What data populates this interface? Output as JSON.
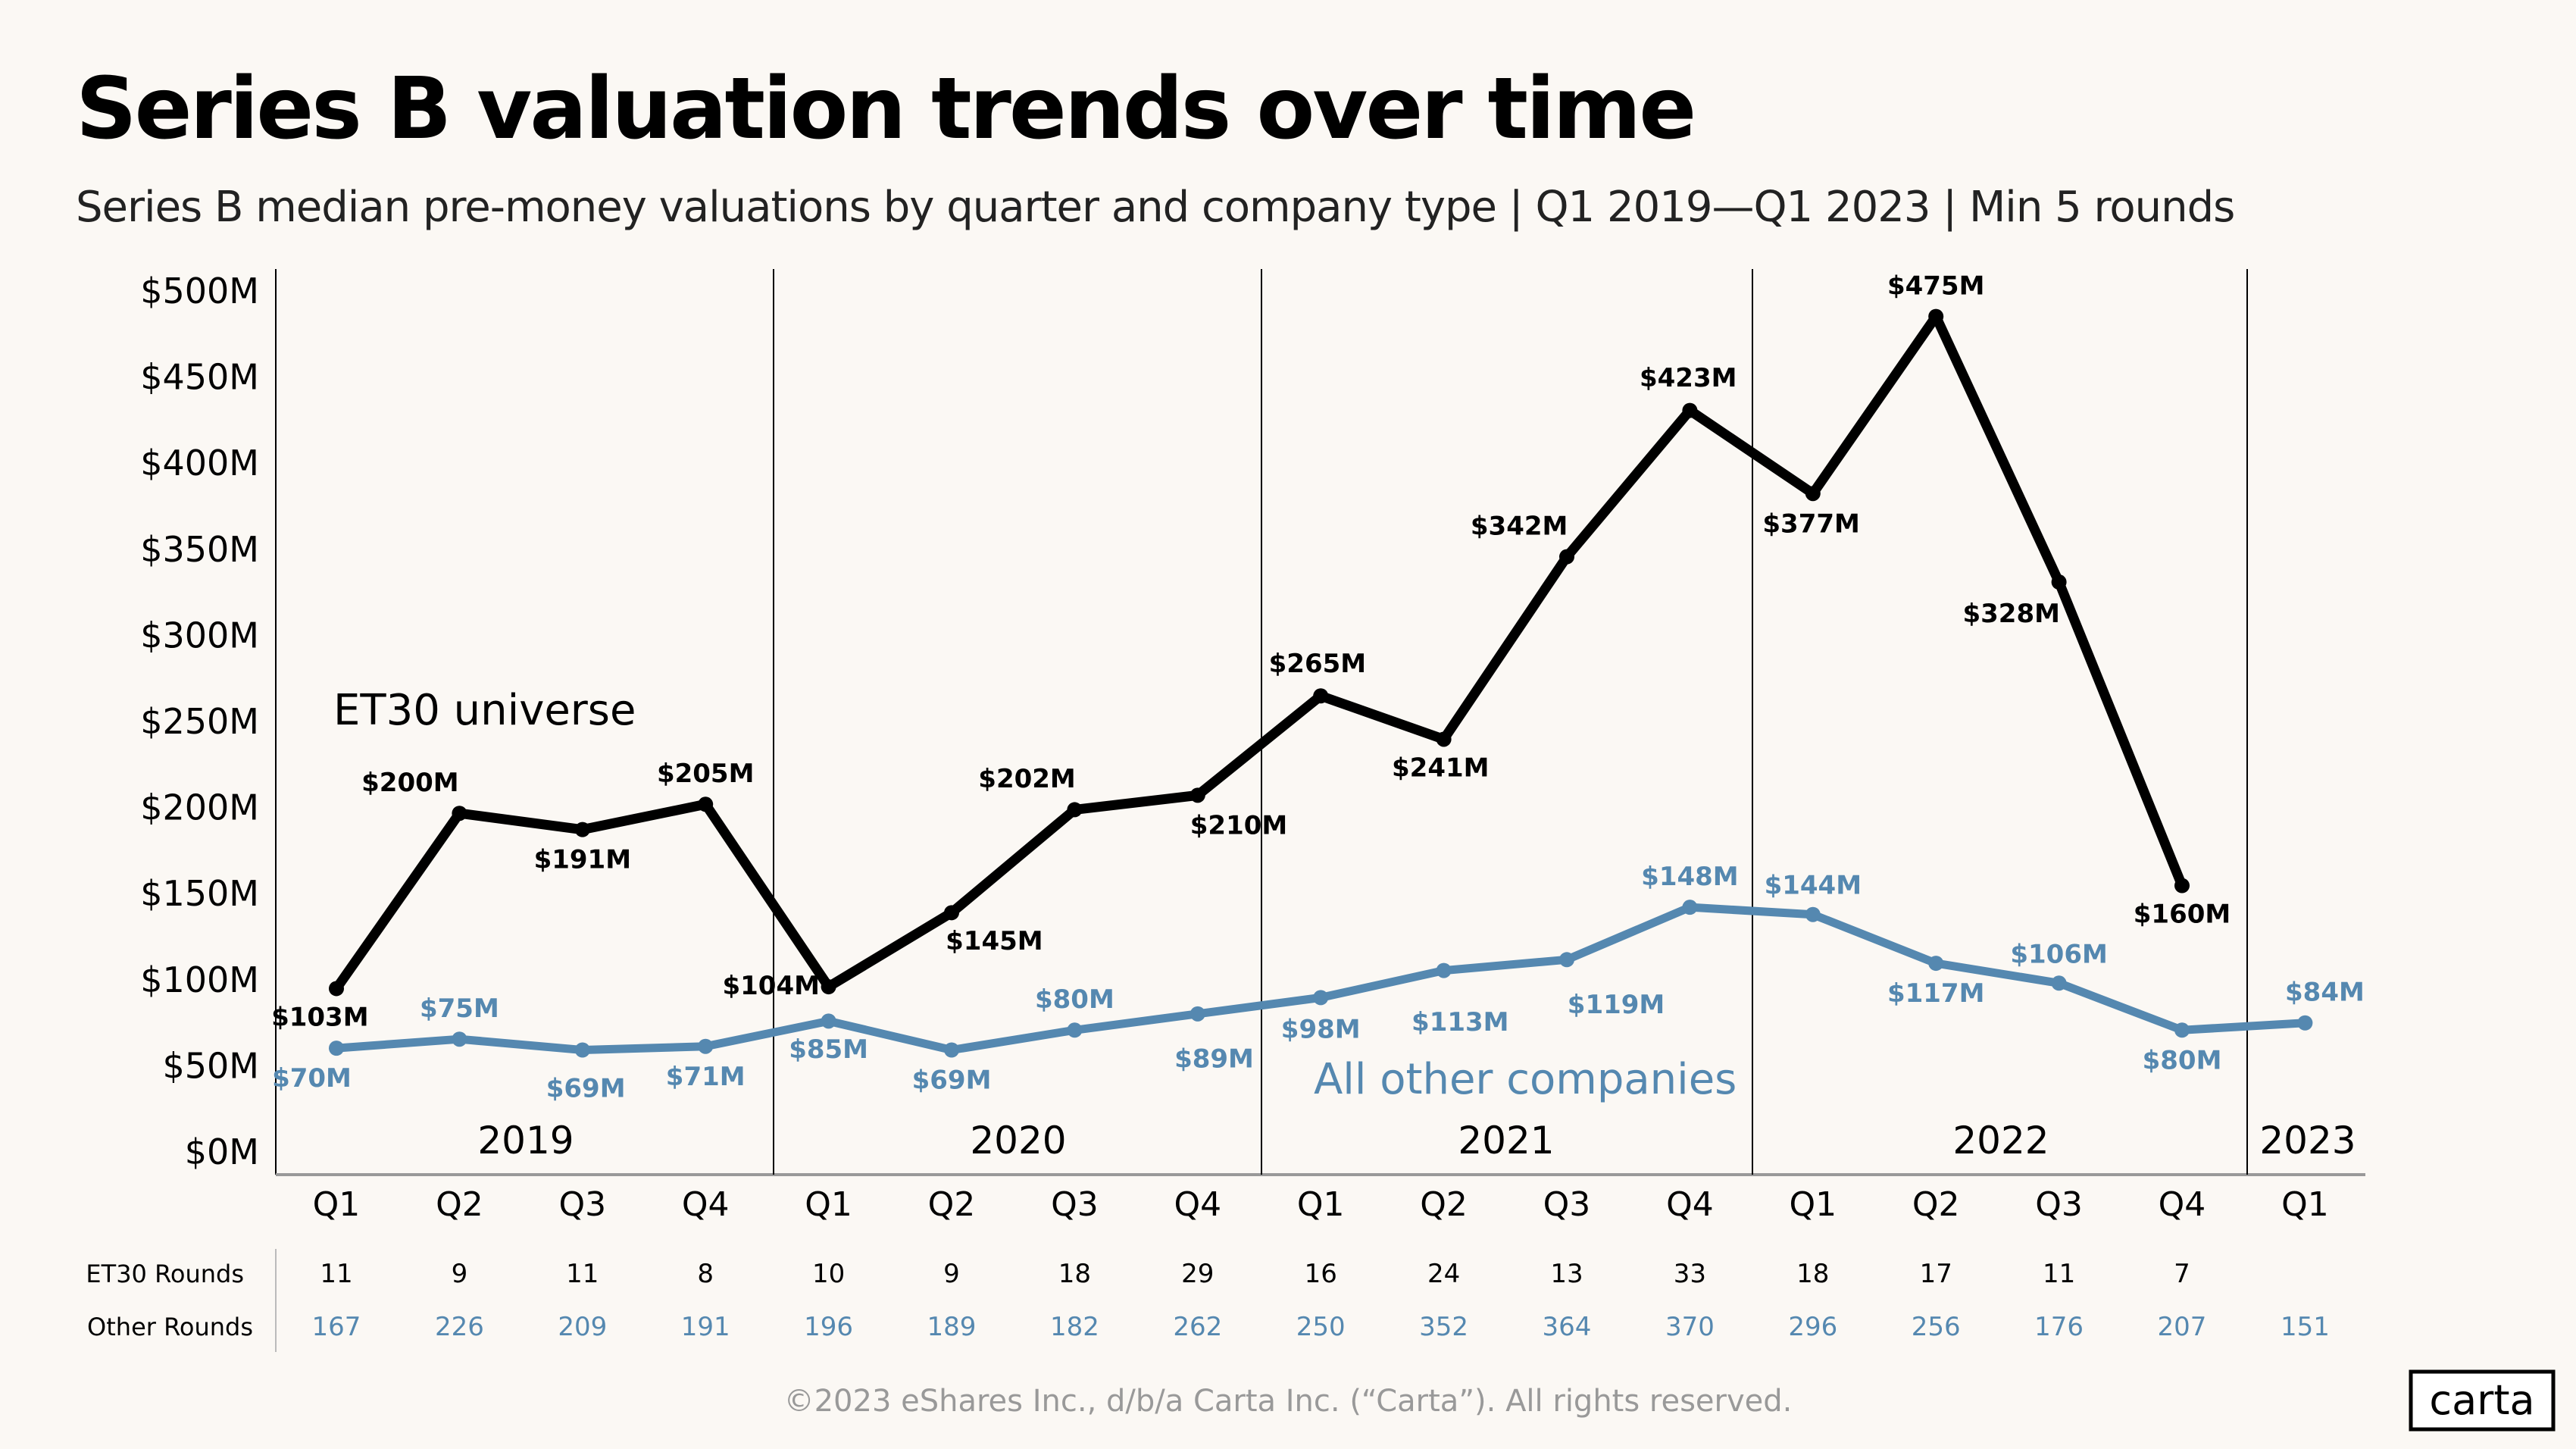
{
  "header": {
    "title": "Series B valuation trends over time",
    "subtitle": "Series B median pre-money valuations by quarter and company type  |  Q1 2019—Q1 2023  |  Min 5 rounds"
  },
  "footer": {
    "copyright": "©2023 eShares Inc., d/b/a Carta Inc. (“Carta”). All rights reserved.",
    "logo": "carta"
  },
  "chart_data": {
    "type": "line",
    "title": "Series B valuation trends over time",
    "subtitle": "Series B median pre-money valuations by quarter and company type  |  Q1 2019—Q1 2023  |  Min 5 rounds",
    "ylim": [
      0,
      500
    ],
    "yticks": [
      "$0M",
      "$50M",
      "$100M",
      "$150M",
      "$200M",
      "$250M",
      "$300M",
      "$350M",
      "$400M",
      "$450M",
      "$500M"
    ],
    "ytick_values": [
      0,
      50,
      100,
      150,
      200,
      250,
      300,
      350,
      400,
      450,
      500
    ],
    "years": [
      "2019",
      "2020",
      "2021",
      "2022",
      "2023"
    ],
    "categories": [
      "Q1",
      "Q2",
      "Q3",
      "Q4",
      "Q1",
      "Q2",
      "Q3",
      "Q4",
      "Q1",
      "Q2",
      "Q3",
      "Q4",
      "Q1",
      "Q2",
      "Q3",
      "Q4",
      "Q1"
    ],
    "grid": false,
    "colors": {
      "et30": "#000000",
      "other": "#5588b0",
      "background": "#fbf8f4"
    },
    "series": [
      {
        "name": "ET30 universe",
        "values": [
          103,
          200,
          191,
          205,
          104,
          145,
          202,
          210,
          265,
          241,
          342,
          423,
          377,
          475,
          328,
          160,
          null
        ],
        "labels": [
          "$103M",
          "$200M",
          "$191M",
          "$205M",
          "$104M",
          "$145M",
          "$202M",
          "$210M",
          "$265M",
          "$241M",
          "$342M",
          "$423M",
          "$377M",
          "$475M",
          "$328M",
          "$160M",
          ""
        ]
      },
      {
        "name": "All other companies",
        "values": [
          70,
          75,
          69,
          71,
          85,
          69,
          80,
          89,
          98,
          113,
          119,
          148,
          144,
          117,
          106,
          80,
          84
        ],
        "labels": [
          "$70M",
          "$75M",
          "$69M",
          "$71M",
          "$85M",
          "$69M",
          "$80M",
          "$89M",
          "$98M",
          "$113M",
          "$119M",
          "$148M",
          "$144M",
          "$117M",
          "$106M",
          "$80M",
          "$84M"
        ]
      }
    ],
    "rounds_table": {
      "et30_label": "ET30 Rounds",
      "other_label": "Other Rounds",
      "et30": [
        "11",
        "9",
        "11",
        "8",
        "10",
        "9",
        "18",
        "29",
        "16",
        "24",
        "13",
        "33",
        "18",
        "17",
        "11",
        "7",
        ""
      ],
      "other": [
        "167",
        "226",
        "209",
        "191",
        "196",
        "189",
        "182",
        "262",
        "250",
        "352",
        "364",
        "370",
        "296",
        "256",
        "176",
        "207",
        "151"
      ]
    }
  }
}
